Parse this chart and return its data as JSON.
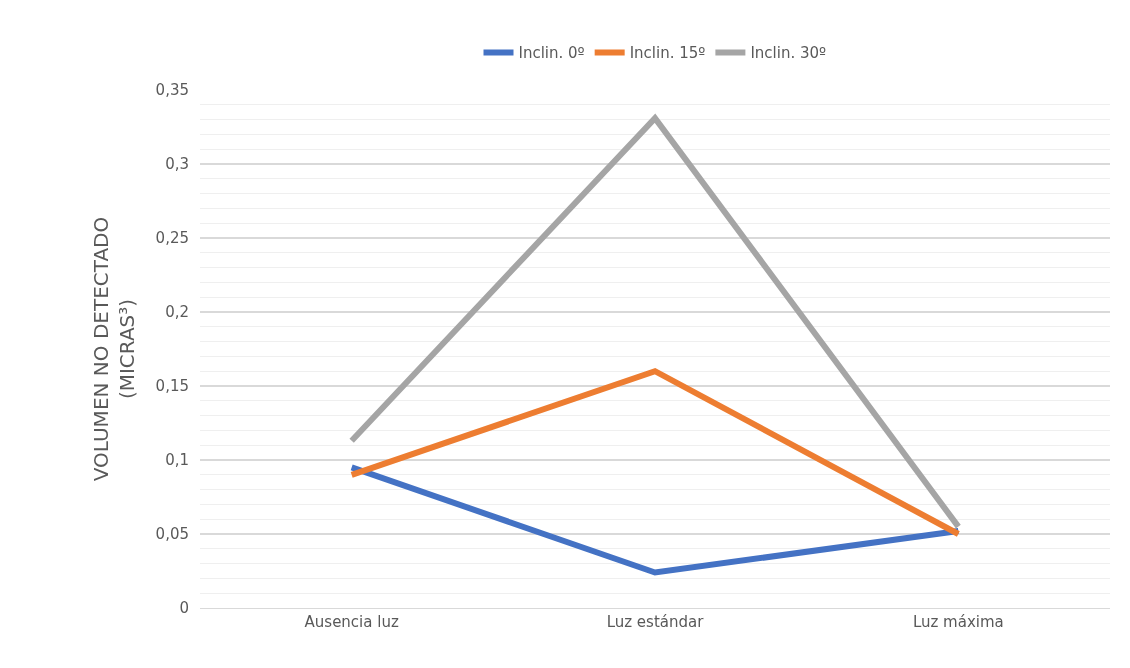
{
  "chart_data": {
    "type": "line",
    "ylabel": "VOLUMEN NO DETECTADO\n(MICRAS³)",
    "categories": [
      "Ausencia luz",
      "Luz estándar",
      "Luz máxima"
    ],
    "series": [
      {
        "name": "Inclin. 0º",
        "color": "#4472c4",
        "values": [
          0.095,
          0.024,
          0.052
        ]
      },
      {
        "name": "Inclin. 15º",
        "color": "#ed7d31",
        "values": [
          0.09,
          0.16,
          0.05
        ]
      },
      {
        "name": "Inclin. 30º",
        "color": "#a5a5a5",
        "values": [
          0.113,
          0.331,
          0.055
        ]
      }
    ],
    "ylim": [
      0,
      0.35
    ],
    "yticks": [
      0,
      {
        "value": 0.05,
        "label": "0,05"
      },
      {
        "value": 0.1,
        "label": "0,1"
      },
      {
        "value": 0.15,
        "label": "0,15"
      },
      {
        "value": 0.2,
        "label": "0,2"
      },
      {
        "value": 0.25,
        "label": "0,25"
      },
      {
        "value": 0.3,
        "label": "0,3"
      },
      {
        "value": 0.35,
        "label": "0,35"
      }
    ],
    "grid": "y",
    "legend": "top",
    "marker": "none",
    "line_style": "solid"
  }
}
